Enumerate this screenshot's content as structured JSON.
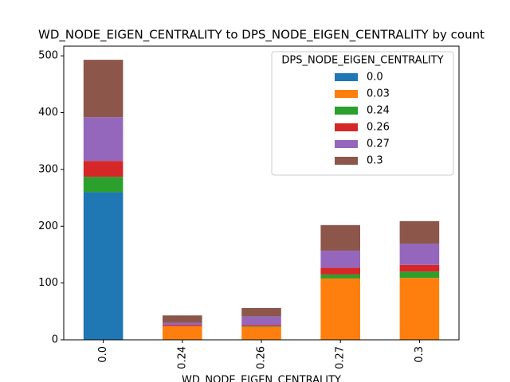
{
  "chart_data": {
    "type": "bar",
    "stacked": true,
    "title": "WD_NODE_EIGEN_CENTRALITY to DPS_NODE_EIGEN_CENTRALITY by count",
    "x_label": "WD_NODE_EIGEN_CENTRALITY",
    "legend_title": "DPS_NODE_EIGEN_CENTRALITY",
    "legend_position": "upper right",
    "categories": [
      "0.0",
      "0.24",
      "0.26",
      "0.27",
      "0.3"
    ],
    "series": [
      {
        "name": "0.0",
        "color": "#1f77b4",
        "values": [
          260,
          0,
          0,
          0,
          0
        ]
      },
      {
        "name": "0.03",
        "color": "#ff7f0e",
        "values": [
          0,
          24,
          23,
          108,
          109
        ]
      },
      {
        "name": "0.24",
        "color": "#2ca02c",
        "values": [
          27,
          0,
          1,
          7,
          11
        ]
      },
      {
        "name": "0.26",
        "color": "#d62728",
        "values": [
          28,
          2,
          2,
          12,
          12
        ]
      },
      {
        "name": "0.27",
        "color": "#9467bd",
        "values": [
          77,
          4,
          15,
          30,
          37
        ]
      },
      {
        "name": "0.3",
        "color": "#8c564b",
        "values": [
          101,
          13,
          15,
          45,
          40
        ]
      }
    ],
    "ylim": [
      0,
      517
    ],
    "yticks": [
      0,
      100,
      200,
      300,
      400,
      500
    ]
  }
}
